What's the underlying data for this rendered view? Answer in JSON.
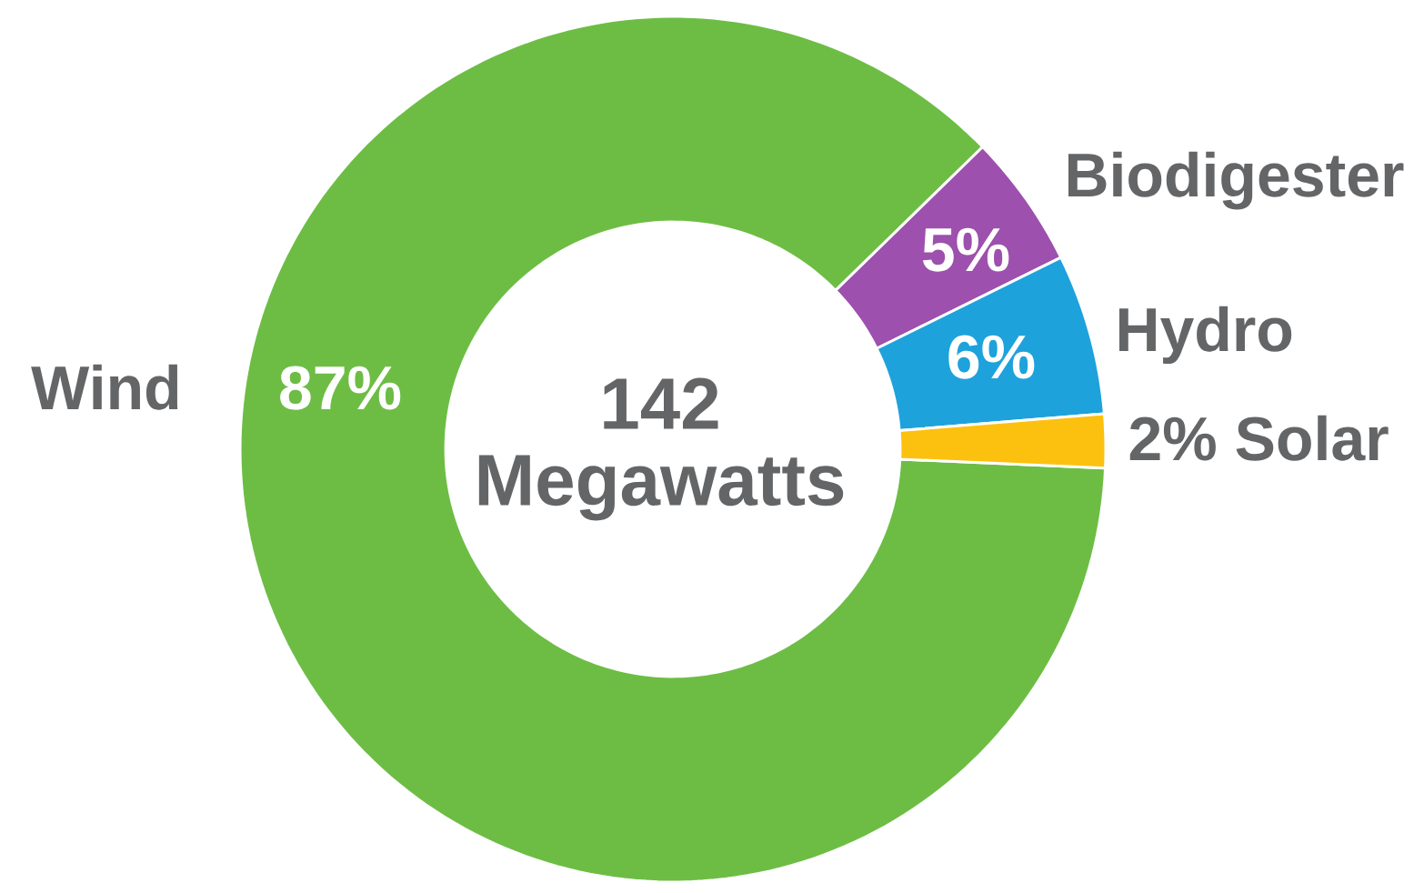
{
  "chart_data": {
    "type": "donut",
    "title": "142 Megawatts",
    "categories": [
      "Wind",
      "Biodigester",
      "Hydro",
      "Solar"
    ],
    "values": [
      87,
      5,
      6,
      2
    ],
    "colors": [
      "#6dbd45",
      "#9d50ad",
      "#1ea2dc",
      "#fcc10f"
    ],
    "value_labels": [
      "87%",
      "5%",
      "6%",
      "2%"
    ]
  }
}
